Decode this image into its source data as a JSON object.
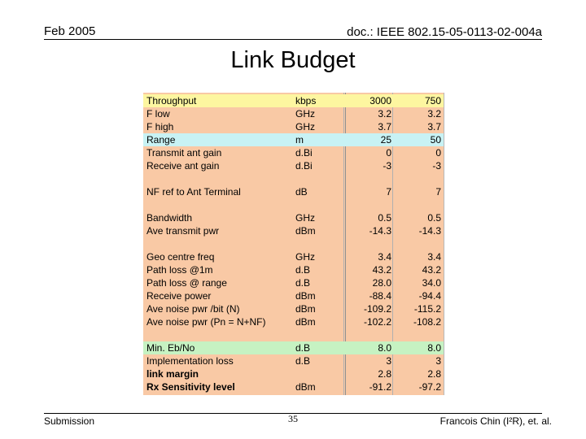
{
  "header": {
    "date": "Feb 2005",
    "doc_id": "doc.: IEEE 802.15-05-0113-02-004a"
  },
  "title": "Link Budget",
  "table": {
    "rows": [
      {
        "label": "Throughput",
        "unit": "kbps",
        "v1": "3000",
        "v2": "750",
        "hl": "yellow"
      },
      {
        "label": "F low",
        "unit": "GHz",
        "v1": "3.2",
        "v2": "3.2"
      },
      {
        "label": "F high",
        "unit": "GHz",
        "v1": "3.7",
        "v2": "3.7"
      },
      {
        "label": "Range",
        "unit": "m",
        "v1": "25",
        "v2": "50",
        "hl": "cyan"
      },
      {
        "label": "Transmit ant gain",
        "unit": "d.Bi",
        "v1": "0",
        "v2": "0"
      },
      {
        "label": "Receive ant gain",
        "unit": "d.Bi",
        "v1": "-3",
        "v2": "-3"
      },
      {
        "label": "NF ref to Ant Terminal",
        "unit": "dB",
        "v1": "7",
        "v2": "7",
        "gap": true
      },
      {
        "label": "Bandwidth",
        "unit": "GHz",
        "v1": "0.5",
        "v2": "0.5",
        "gap": true
      },
      {
        "label": "Ave transmit pwr",
        "unit": "dBm",
        "v1": "-14.3",
        "v2": "-14.3"
      },
      {
        "label": "Geo centre freq",
        "unit": "GHz",
        "v1": "3.4",
        "v2": "3.4",
        "gap": true
      },
      {
        "label": "Path loss @1m",
        "unit": "d.B",
        "v1": "43.2",
        "v2": "43.2"
      },
      {
        "label": "Path loss @ range",
        "unit": "d.B",
        "v1": "28.0",
        "v2": "34.0"
      },
      {
        "label": "Receive power",
        "unit": "dBm",
        "v1": "-88.4",
        "v2": "-94.4"
      },
      {
        "label": "Ave noise pwr /bit (N)",
        "unit": "dBm",
        "v1": "-109.2",
        "v2": "-115.2"
      },
      {
        "label": "Ave noise pwr (Pn = N+NF)",
        "unit": "dBm",
        "v1": "-102.2",
        "v2": "-108.2"
      },
      {
        "label": "Min. Eb/No",
        "unit": "d.B",
        "v1": "8.0",
        "v2": "8.0",
        "hl": "green",
        "gap": true
      },
      {
        "label": "Implementation loss",
        "unit": "d.B",
        "v1": "3",
        "v2": "3"
      },
      {
        "label": "link margin",
        "unit": "",
        "v1": "2.8",
        "v2": "2.8",
        "bold": true
      },
      {
        "label": "Rx Sensitivity level",
        "unit": "dBm",
        "v1": "-91.2",
        "v2": "-97.2",
        "bold": true
      }
    ]
  },
  "footer": {
    "left": "Submission",
    "page": "35",
    "right": "Francois Chin (I²R), et. al."
  }
}
